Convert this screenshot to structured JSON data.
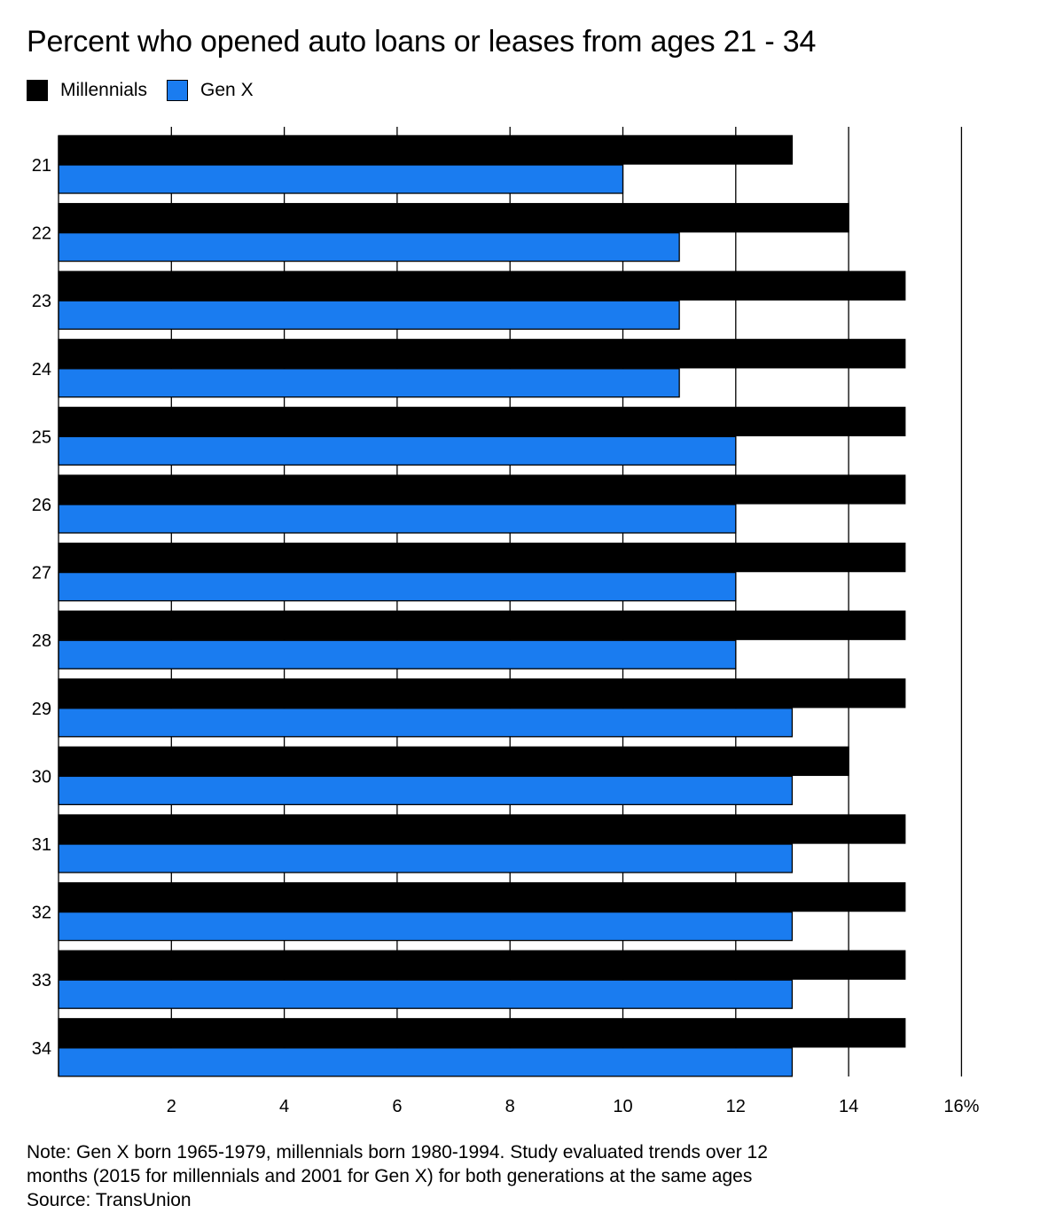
{
  "chart_data": {
    "type": "bar",
    "orientation": "horizontal",
    "title": "Percent who opened auto loans or leases from ages 21 - 34",
    "categories": [
      "21",
      "22",
      "23",
      "24",
      "25",
      "26",
      "27",
      "28",
      "29",
      "30",
      "31",
      "32",
      "33",
      "34"
    ],
    "series": [
      {
        "name": "Millennials",
        "color": "#000000",
        "values": [
          13,
          14,
          15,
          15,
          15,
          15,
          15,
          15,
          15,
          14,
          15,
          15,
          15,
          15
        ]
      },
      {
        "name": "Gen X",
        "color": "#1a7cf0",
        "values": [
          10,
          11,
          11,
          11,
          12,
          12,
          12,
          12,
          13,
          13,
          13,
          13,
          13,
          13
        ]
      }
    ],
    "xlim": [
      0,
      16
    ],
    "xticks": [
      2,
      4,
      6,
      8,
      10,
      12,
      14,
      16
    ],
    "xtick_labels": [
      "2",
      "4",
      "6",
      "8",
      "10",
      "12",
      "14",
      "16%"
    ],
    "grid": true,
    "legend_position": "top-left"
  },
  "notes": {
    "line1": "Note: Gen X born 1965-1979, millennials born 1980-1994. Study evaluated trends over 12",
    "line2": "months (2015 for millennials and 2001 for Gen X) for both generations at the same ages",
    "source": "Source: TransUnion"
  }
}
